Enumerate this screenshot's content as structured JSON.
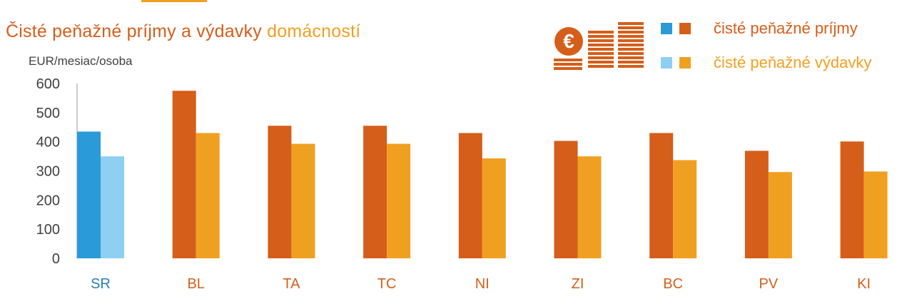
{
  "title_part1": "Čisté peňažné príjmy a výdavky",
  "title_part2": "domácností",
  "unit_label": "EUR/mesiac/osoba",
  "legend": {
    "income": "čisté peňažné príjmy",
    "expenses": "čisté peňažné výdavky"
  },
  "colors": {
    "income": "#d55e1a",
    "expenses": "#f0a020",
    "sr_income": "#2a9ad8",
    "sr_expenses": "#8dd0f2",
    "sr_label": "#2a7fb5",
    "region_label": "#d55e1a",
    "axis_text": "#404040"
  },
  "icon": "euro-coins-icon",
  "chart_data": {
    "type": "bar",
    "categories": [
      "SR",
      "BL",
      "TA",
      "TC",
      "NI",
      "ZI",
      "BC",
      "PV",
      "KI"
    ],
    "series": [
      {
        "name": "čisté peňažné príjmy",
        "values": [
          435,
          575,
          455,
          455,
          430,
          403,
          430,
          369,
          401
        ]
      },
      {
        "name": "čisté peňažné výdavky",
        "values": [
          350,
          430,
          393,
          393,
          343,
          350,
          337,
          296,
          298
        ]
      }
    ],
    "yticks": [
      "0",
      "100",
      "200",
      "300",
      "400",
      "500",
      "600"
    ],
    "ylim": [
      0,
      600
    ],
    "ylabel": "EUR/mesiac/osoba",
    "grid": false,
    "legend_position": "top-right"
  }
}
